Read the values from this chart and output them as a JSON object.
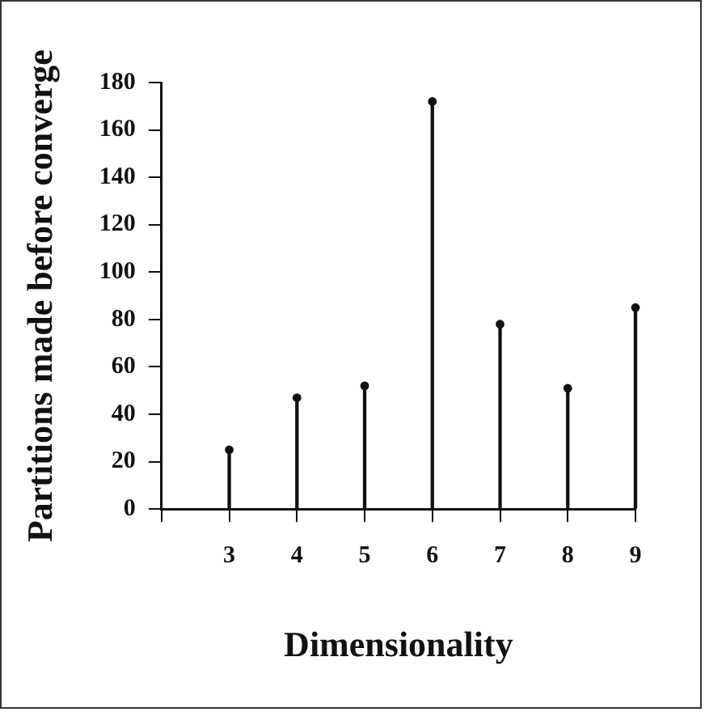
{
  "chart_data": {
    "type": "lollipop",
    "xlabel": "Dimensionality",
    "ylabel": "Partitions made before converge",
    "x": [
      3,
      4,
      5,
      6,
      7,
      8,
      9
    ],
    "values": [
      25,
      47,
      52,
      172,
      78,
      51,
      85
    ],
    "color": "#111111",
    "marker": "circle",
    "grid": false,
    "legend": false,
    "xlim": [
      2,
      9
    ],
    "xticks": [
      {
        "value": 2,
        "label": null
      },
      3,
      4,
      5,
      6,
      7,
      8,
      9
    ],
    "ylim": [
      0,
      180
    ],
    "yticks": [
      0,
      20,
      40,
      60,
      80,
      100,
      120,
      140,
      160,
      180
    ]
  }
}
